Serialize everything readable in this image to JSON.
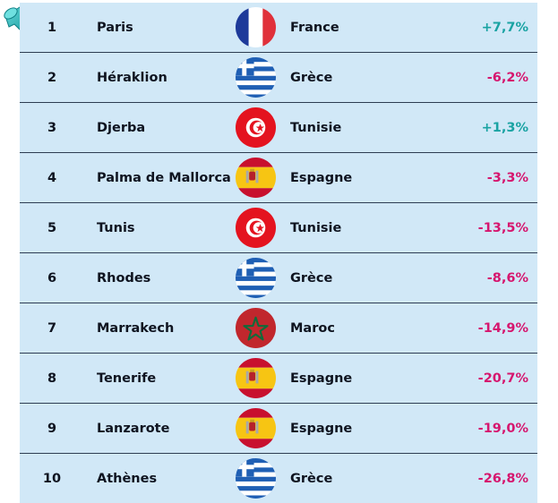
{
  "rows": [
    {
      "rank": "1",
      "city": "Paris",
      "country": "France",
      "flag": "france-flag-icon",
      "change": "+7,7%",
      "trend": "pos"
    },
    {
      "rank": "2",
      "city": "Héraklion",
      "country": "Grèce",
      "flag": "greece-flag-icon",
      "change": "-6,2%",
      "trend": "neg"
    },
    {
      "rank": "3",
      "city": "Djerba",
      "country": "Tunisie",
      "flag": "tunisia-flag-icon",
      "change": "+1,3%",
      "trend": "pos"
    },
    {
      "rank": "4",
      "city": "Palma de Mallorca",
      "country": "Espagne",
      "flag": "spain-flag-icon",
      "change": "-3,3%",
      "trend": "neg"
    },
    {
      "rank": "5",
      "city": "Tunis",
      "country": "Tunisie",
      "flag": "tunisia-flag-icon",
      "change": "-13,5%",
      "trend": "neg"
    },
    {
      "rank": "6",
      "city": "Rhodes",
      "country": "Grèce",
      "flag": "greece-flag-icon",
      "change": "-8,6%",
      "trend": "neg"
    },
    {
      "rank": "7",
      "city": "Marrakech",
      "country": "Maroc",
      "flag": "morocco-flag-icon",
      "change": "-14,9%",
      "trend": "neg"
    },
    {
      "rank": "8",
      "city": "Tenerife",
      "country": "Espagne",
      "flag": "spain-flag-icon",
      "change": "-20,7%",
      "trend": "neg"
    },
    {
      "rank": "9",
      "city": "Lanzarote",
      "country": "Espagne",
      "flag": "spain-flag-icon",
      "change": "-19,0%",
      "trend": "neg"
    },
    {
      "rank": "10",
      "city": "Athènes",
      "country": "Grèce",
      "flag": "greece-flag-icon",
      "change": "-26,8%",
      "trend": "neg"
    }
  ],
  "colors": {
    "row_background": "#d1e8f7",
    "positive": "#1aa3a3",
    "negative": "#d6166e",
    "pin": "#1fb5b5"
  }
}
